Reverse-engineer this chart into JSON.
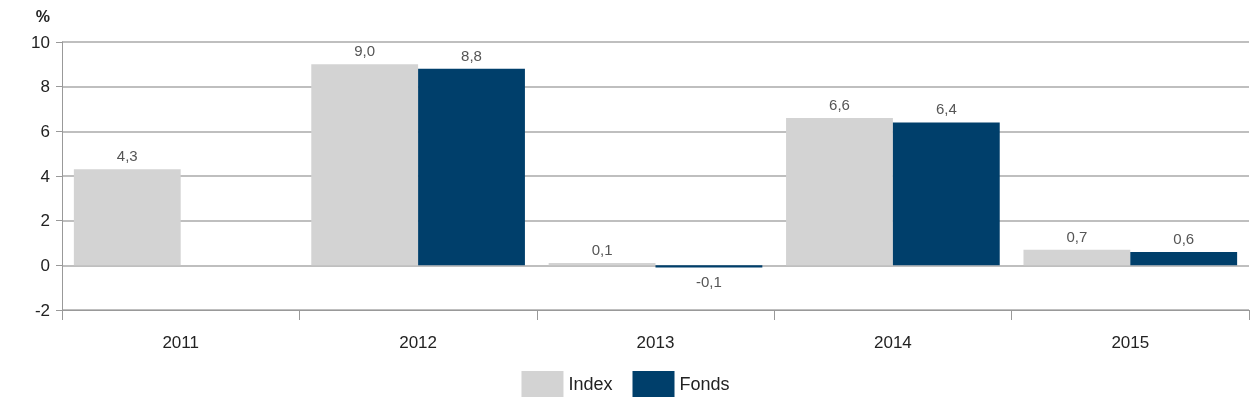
{
  "chart_data": {
    "type": "bar",
    "ylabel": "%",
    "categories": [
      "2011",
      "2012",
      "2013",
      "2014",
      "2015"
    ],
    "series": [
      {
        "name": "Index",
        "color": "#d3d3d3",
        "values": [
          4.3,
          9.0,
          0.1,
          6.6,
          0.7
        ],
        "value_labels": [
          "4,3",
          "9,0",
          "0,1",
          "6,6",
          "0,7"
        ]
      },
      {
        "name": "Fonds",
        "color": "#003f6b",
        "values": [
          null,
          8.8,
          -0.1,
          6.4,
          0.6
        ],
        "value_labels": [
          null,
          "8,8",
          "-0,1",
          "6,4",
          "0,6"
        ]
      }
    ],
    "ylim": [
      -2,
      10
    ],
    "yticks": [
      -2,
      0,
      2,
      4,
      6,
      8,
      10
    ],
    "grid": "y",
    "legend": "bottom"
  }
}
